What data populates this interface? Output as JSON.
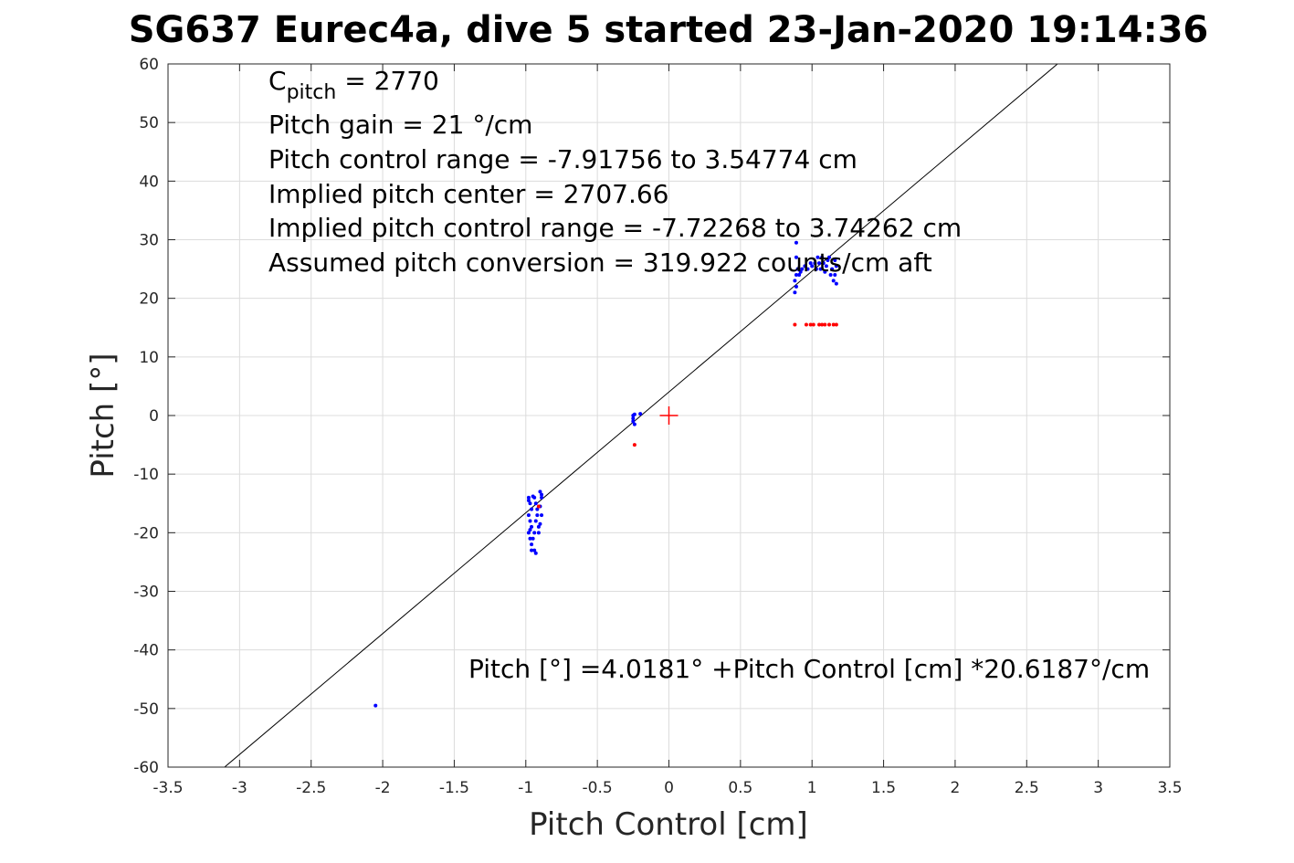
{
  "chart_data": {
    "type": "scatter",
    "title": "SG637 Eurec4a, dive 5 started 23-Jan-2020 19:14:36",
    "xlabel": "Pitch Control [cm]",
    "ylabel": "Pitch [°]",
    "xlim": [
      -3.5,
      3.5
    ],
    "ylim": [
      -60,
      60
    ],
    "xticks": [
      -3.5,
      -3,
      -2.5,
      -2,
      -1.5,
      -1,
      -0.5,
      0,
      0.5,
      1,
      1.5,
      2,
      2.5,
      3,
      3.5
    ],
    "yticks": [
      -60,
      -50,
      -40,
      -30,
      -20,
      -10,
      0,
      10,
      20,
      30,
      40,
      50,
      60
    ],
    "xtick_labels": [
      "-3.5",
      "-3",
      "-2.5",
      "-2",
      "-1.5",
      "-1",
      "-0.5",
      "0",
      "0.5",
      "1",
      "1.5",
      "2",
      "2.5",
      "3",
      "3.5"
    ],
    "ytick_labels": [
      "-60",
      "-50",
      "-40",
      "-30",
      "-20",
      "-10",
      "0",
      "10",
      "20",
      "30",
      "40",
      "50",
      "60"
    ],
    "grid": true,
    "annotations": {
      "cpitch_main": "C",
      "cpitch_sub": "pitch",
      "cpitch_value": " = 2770",
      "lines": [
        "Pitch gain = 21 °/cm",
        "Pitch control range = -7.91756 to 3.54774 cm",
        "Implied pitch center = 2707.66",
        "Implied pitch control range = -7.72268 to 3.74262 cm",
        "Assumed pitch conversion = 319.922 counts/cm aft"
      ],
      "fit_equation": "Pitch [°] =4.0181° +Pitch Control [cm] *20.6187°/cm"
    },
    "fit_line": {
      "intercept": 4.0181,
      "slope": 20.6187,
      "color": "#000000"
    },
    "center_marker": {
      "x": 0,
      "y": 0,
      "color": "#ff0000"
    },
    "series": [
      {
        "color": "#0000ff",
        "points": [
          [
            -0.98,
            -14
          ],
          [
            -0.97,
            -15
          ],
          [
            -0.96,
            -16
          ],
          [
            -0.98,
            -17
          ],
          [
            -0.97,
            -18
          ],
          [
            -0.96,
            -19
          ],
          [
            -0.98,
            -20
          ],
          [
            -0.97,
            -21
          ],
          [
            -0.96,
            -22
          ],
          [
            -0.98,
            -14.5
          ],
          [
            -0.95,
            -13.8
          ],
          [
            -0.97,
            -19.5
          ],
          [
            -0.94,
            -23
          ],
          [
            -0.93,
            -23.5
          ],
          [
            -0.94,
            -20
          ],
          [
            -0.93,
            -18
          ],
          [
            -0.92,
            -16
          ],
          [
            -0.94,
            -14
          ],
          [
            -0.93,
            -15
          ],
          [
            -0.92,
            -17
          ],
          [
            -0.91,
            -19
          ],
          [
            -0.9,
            -13
          ],
          [
            -0.89,
            -14
          ],
          [
            -0.9,
            -15.5
          ],
          [
            -0.89,
            -17
          ],
          [
            -0.9,
            -18.5
          ],
          [
            -0.91,
            -20
          ],
          [
            -0.89,
            -13.5
          ],
          [
            -0.95,
            -21
          ],
          [
            -0.96,
            -23
          ],
          [
            -0.25,
            -1
          ],
          [
            -0.25,
            0
          ],
          [
            -0.25,
            -0.5
          ],
          [
            -0.24,
            -1.5
          ],
          [
            -0.2,
            0.3
          ],
          [
            -0.24,
            0.2
          ],
          [
            0.88,
            23
          ],
          [
            0.89,
            22
          ],
          [
            0.88,
            21
          ],
          [
            0.89,
            24
          ],
          [
            0.9,
            25
          ],
          [
            0.91,
            24
          ],
          [
            0.92,
            24.5
          ],
          [
            0.93,
            25
          ],
          [
            0.95,
            25.5
          ],
          [
            0.97,
            25
          ],
          [
            0.99,
            26
          ],
          [
            1.0,
            25.5
          ],
          [
            1.02,
            26
          ],
          [
            1.03,
            25
          ],
          [
            1.04,
            27
          ],
          [
            1.05,
            26
          ],
          [
            1.06,
            25
          ],
          [
            1.07,
            27
          ],
          [
            1.08,
            26
          ],
          [
            1.09,
            24.5
          ],
          [
            1.1,
            25.5
          ],
          [
            1.11,
            26.5
          ],
          [
            1.12,
            27
          ],
          [
            1.13,
            24
          ],
          [
            1.14,
            25
          ],
          [
            1.15,
            23
          ],
          [
            1.16,
            24
          ],
          [
            1.17,
            22.5
          ],
          [
            1.17,
            25.5
          ],
          [
            1.16,
            26.5
          ],
          [
            0.89,
            29.5
          ],
          [
            0.89,
            27
          ],
          [
            -2.05,
            -49.5
          ]
        ]
      },
      {
        "color": "#ff0000",
        "points": [
          [
            0.88,
            15.5
          ],
          [
            0.96,
            15.5
          ],
          [
            0.99,
            15.5
          ],
          [
            1.01,
            15.5
          ],
          [
            1.05,
            15.5
          ],
          [
            1.07,
            15.5
          ],
          [
            1.09,
            15.5
          ],
          [
            1.12,
            15.5
          ],
          [
            1.15,
            15.5
          ],
          [
            1.17,
            15.5
          ],
          [
            -0.24,
            -5
          ],
          [
            -0.91,
            -15.5
          ]
        ]
      }
    ]
  }
}
